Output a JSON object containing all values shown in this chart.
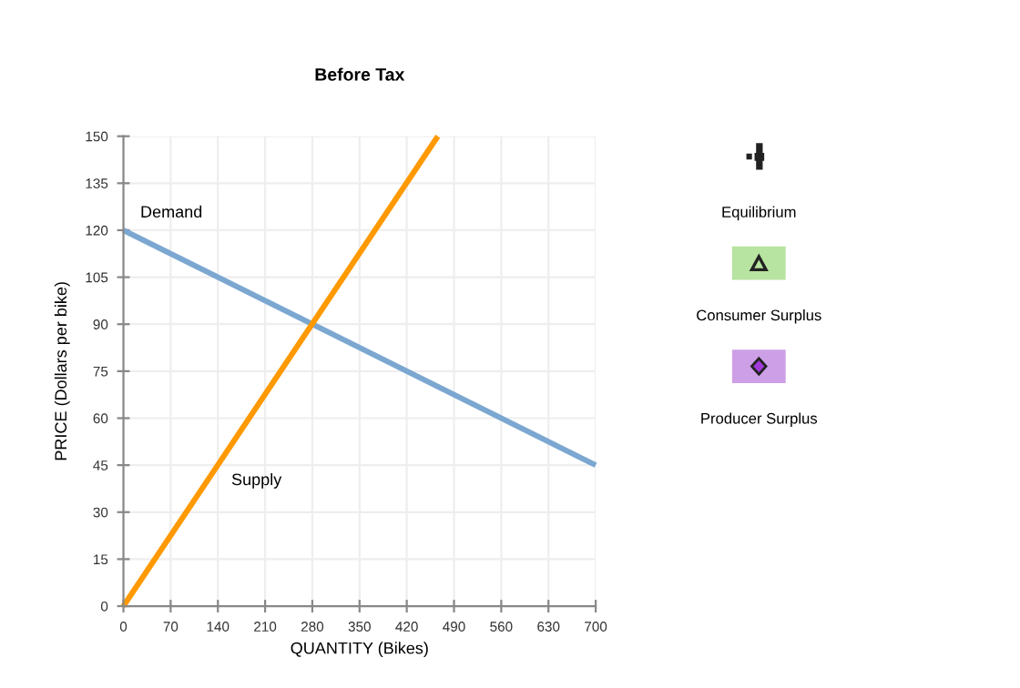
{
  "chart_data": {
    "type": "line",
    "title": "Before Tax",
    "xlabel": "QUANTITY (Bikes)",
    "ylabel": "PRICE (Dollars per bike)",
    "series": [
      {
        "name": "Demand",
        "color": "#7ba7d1",
        "x": [
          0,
          700
        ],
        "values": [
          120,
          45
        ]
      },
      {
        "name": "Supply",
        "color": "#ff9900",
        "x": [
          0,
          466
        ],
        "values": [
          0,
          150
        ]
      }
    ],
    "xlim": [
      0,
      700
    ],
    "xticks": [
      0,
      70,
      140,
      210,
      280,
      350,
      420,
      490,
      560,
      630,
      700
    ],
    "ylim": [
      0,
      150
    ],
    "yticks": [
      0,
      15,
      30,
      45,
      60,
      75,
      90,
      105,
      120,
      135,
      150
    ],
    "grid": true,
    "legend": false,
    "marker": "none",
    "line_style": "solid",
    "annotations": [
      "Equilibrium",
      "Consumer Surplus",
      "Producer Surplus"
    ]
  }
}
